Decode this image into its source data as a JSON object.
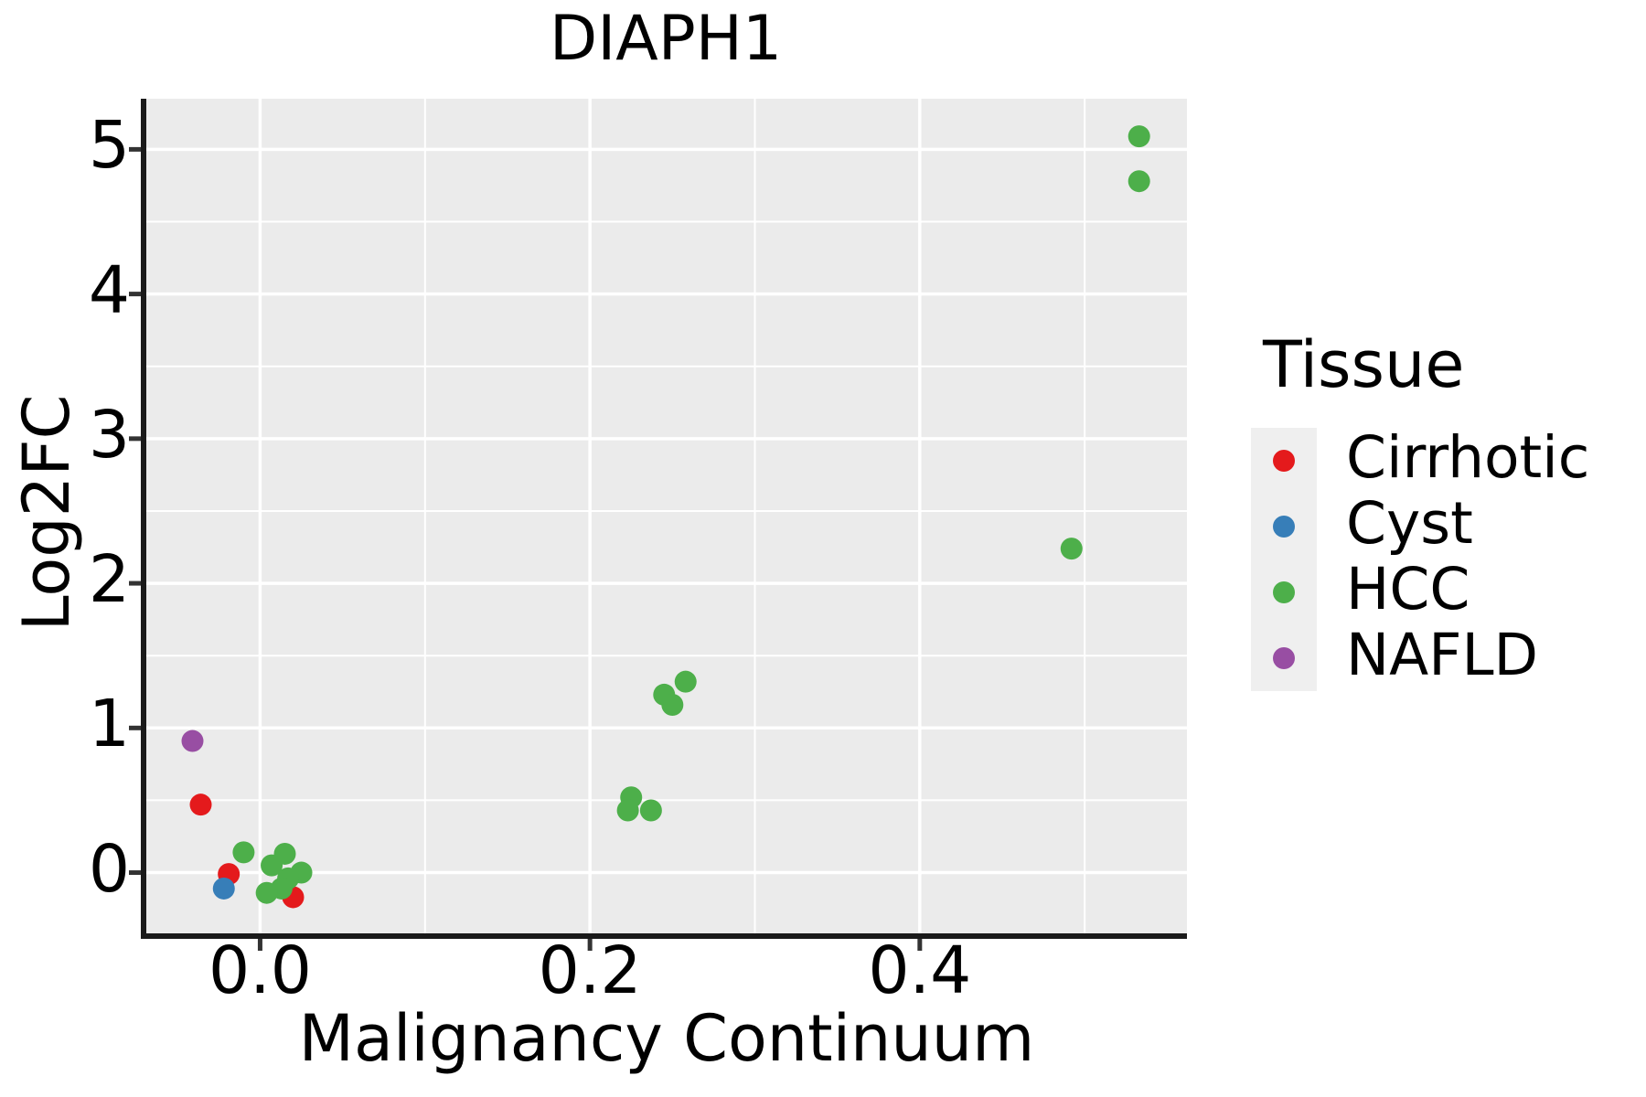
{
  "title": "DIAPH1",
  "axes": {
    "x": {
      "label": "Malignancy Continuum",
      "ticks": [
        {
          "value": 0.0,
          "label": "0.0"
        },
        {
          "value": 0.2,
          "label": "0.2"
        },
        {
          "value": 0.4,
          "label": "0.4"
        }
      ],
      "minor_ticks": [
        0.1,
        0.3,
        0.5
      ],
      "range": [
        -0.069,
        0.562
      ]
    },
    "y": {
      "label": "Log2FC",
      "ticks": [
        {
          "value": 0,
          "label": "0"
        },
        {
          "value": 1,
          "label": "1"
        },
        {
          "value": 2,
          "label": "2"
        },
        {
          "value": 3,
          "label": "3"
        },
        {
          "value": 4,
          "label": "4"
        },
        {
          "value": 5,
          "label": "5"
        }
      ],
      "minor_ticks": [
        0.5,
        1.5,
        2.5,
        3.5,
        4.5
      ],
      "range": [
        -0.42,
        5.35
      ]
    }
  },
  "legend": {
    "title": "Tissue",
    "items": [
      {
        "label": "Cirrhotic",
        "color": "#e41a1c"
      },
      {
        "label": "Cyst",
        "color": "#377eb8"
      },
      {
        "label": "HCC",
        "color": "#4daf4a"
      },
      {
        "label": "NAFLD",
        "color": "#984ea3"
      }
    ]
  },
  "styles": {
    "panel_background": "#ebebeb",
    "grid_color": "#ffffff",
    "axis_line_color": "#1a1a1a",
    "tick_color": "#333333",
    "legend_key_background": "#efefef",
    "text_color": "#000000"
  },
  "chart_data": {
    "type": "scatter",
    "title": "DIAPH1",
    "xlabel": "Malignancy Continuum",
    "ylabel": "Log2FC",
    "xlim": [
      -0.069,
      0.562
    ],
    "ylim": [
      -0.42,
      5.35
    ],
    "grid": "white major+minor gridlines on gray panel",
    "legend_position": "right",
    "marker_diameter_px": 24,
    "series": [
      {
        "name": "Cirrhotic",
        "color": "#e41a1c",
        "points": [
          [
            -0.036,
            0.47
          ],
          [
            -0.019,
            -0.01
          ],
          [
            0.02,
            -0.17
          ]
        ]
      },
      {
        "name": "Cyst",
        "color": "#377eb8",
        "points": [
          [
            -0.022,
            -0.11
          ]
        ]
      },
      {
        "name": "HCC",
        "color": "#4daf4a",
        "points": [
          [
            0.533,
            5.09
          ],
          [
            0.533,
            4.78
          ],
          [
            0.492,
            2.24
          ],
          [
            0.258,
            1.32
          ],
          [
            0.245,
            1.23
          ],
          [
            0.25,
            1.16
          ],
          [
            0.225,
            0.52
          ],
          [
            0.223,
            0.43
          ],
          [
            0.237,
            0.43
          ],
          [
            -0.01,
            0.14
          ],
          [
            0.015,
            0.13
          ],
          [
            0.007,
            0.05
          ],
          [
            0.025,
            0.0
          ],
          [
            0.017,
            -0.04
          ],
          [
            0.013,
            -0.11
          ],
          [
            0.004,
            -0.14
          ]
        ]
      },
      {
        "name": "NAFLD",
        "color": "#984ea3",
        "points": [
          [
            -0.041,
            0.91
          ]
        ]
      }
    ]
  }
}
